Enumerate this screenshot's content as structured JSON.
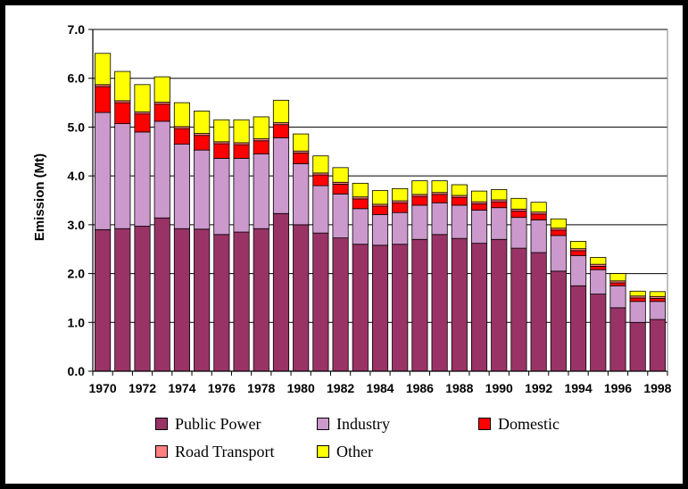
{
  "chart_data": {
    "type": "bar",
    "stacked": true,
    "title": "",
    "xlabel": "",
    "ylabel": "Emission (Mt)",
    "ylim": [
      0,
      7
    ],
    "yticks": [
      "0.0",
      "1.0",
      "2.0",
      "3.0",
      "4.0",
      "5.0",
      "6.0",
      "7.0"
    ],
    "grid": true,
    "legend_position": "bottom",
    "categories": [
      "1970",
      "1971",
      "1972",
      "1973",
      "1974",
      "1975",
      "1976",
      "1977",
      "1978",
      "1979",
      "1980",
      "1981",
      "1982",
      "1983",
      "1984",
      "1985",
      "1986",
      "1987",
      "1988",
      "1989",
      "1990",
      "1991",
      "1992",
      "1993",
      "1994",
      "1995",
      "1996",
      "1997",
      "1998"
    ],
    "xtick_labels": [
      "1970",
      "1972",
      "1974",
      "1976",
      "1978",
      "1980",
      "1982",
      "1984",
      "1986",
      "1988",
      "1990",
      "1992",
      "1994",
      "1996",
      "1998"
    ],
    "series": [
      {
        "name": "Public Power",
        "color": "#993366",
        "values": [
          2.9,
          2.92,
          2.97,
          3.14,
          2.92,
          2.91,
          2.8,
          2.85,
          2.92,
          3.23,
          3.0,
          2.83,
          2.73,
          2.6,
          2.58,
          2.6,
          2.7,
          2.8,
          2.72,
          2.62,
          2.7,
          2.52,
          2.43,
          2.05,
          1.75,
          1.58,
          1.3,
          1.0,
          1.06
        ]
      },
      {
        "name": "Industry",
        "color": "#CC99CC",
        "values": [
          2.4,
          2.15,
          1.93,
          1.98,
          1.73,
          1.62,
          1.56,
          1.51,
          1.53,
          1.55,
          1.25,
          0.97,
          0.9,
          0.73,
          0.63,
          0.65,
          0.7,
          0.65,
          0.68,
          0.68,
          0.65,
          0.63,
          0.67,
          0.73,
          0.62,
          0.5,
          0.45,
          0.43,
          0.37
        ]
      },
      {
        "name": "Domestic",
        "color": "#FF0000",
        "values": [
          0.53,
          0.43,
          0.37,
          0.35,
          0.32,
          0.3,
          0.3,
          0.28,
          0.27,
          0.27,
          0.22,
          0.22,
          0.2,
          0.2,
          0.17,
          0.2,
          0.18,
          0.17,
          0.16,
          0.13,
          0.12,
          0.13,
          0.12,
          0.11,
          0.1,
          0.07,
          0.06,
          0.07,
          0.06
        ]
      },
      {
        "name": "Road Transport",
        "color": "#FF8080",
        "values": [
          0.04,
          0.04,
          0.04,
          0.04,
          0.04,
          0.04,
          0.04,
          0.04,
          0.04,
          0.04,
          0.04,
          0.04,
          0.04,
          0.04,
          0.04,
          0.04,
          0.04,
          0.04,
          0.04,
          0.04,
          0.04,
          0.04,
          0.04,
          0.04,
          0.04,
          0.04,
          0.04,
          0.04,
          0.04
        ]
      },
      {
        "name": "Other",
        "color": "#FFFF00",
        "values": [
          0.64,
          0.6,
          0.56,
          0.52,
          0.49,
          0.46,
          0.45,
          0.47,
          0.45,
          0.46,
          0.35,
          0.35,
          0.3,
          0.28,
          0.28,
          0.25,
          0.28,
          0.24,
          0.22,
          0.22,
          0.21,
          0.22,
          0.2,
          0.19,
          0.15,
          0.14,
          0.15,
          0.1,
          0.1
        ]
      }
    ]
  }
}
